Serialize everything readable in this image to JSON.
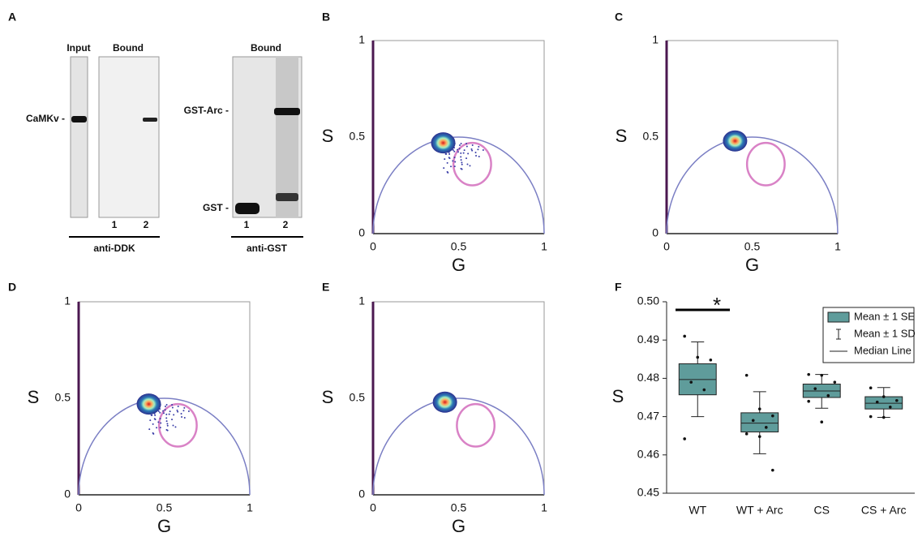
{
  "blot": {
    "label": "A",
    "left": {
      "header_input": "Input",
      "header_bound": "Bound",
      "band_label": "CaMKv -",
      "lanes": [
        "1",
        "2"
      ],
      "antibody": "anti-DDK"
    },
    "right": {
      "header": "Bound",
      "band_labels": [
        "GST-Arc -",
        "GST -"
      ],
      "lanes": [
        "1",
        "2"
      ],
      "antibody": "anti-GST"
    }
  },
  "chart_data": [
    {
      "type": "scatter",
      "label": "B",
      "xlabel": "G",
      "ylabel": "S",
      "xlim": [
        0,
        1
      ],
      "ylim": [
        0,
        1
      ],
      "xticks": [
        0,
        0.5,
        1
      ],
      "yticks": [
        0,
        0.5,
        1
      ],
      "cluster": {
        "x": 0.41,
        "y": 0.47
      },
      "circle": {
        "x": 0.58,
        "y": 0.36,
        "r": 0.11
      }
    },
    {
      "type": "scatter",
      "label": "C",
      "xlabel": "G",
      "ylabel": "S",
      "xlim": [
        0,
        1
      ],
      "ylim": [
        0,
        1
      ],
      "xticks": [
        0,
        0.5,
        1
      ],
      "yticks": [
        0,
        0.5,
        1
      ],
      "cluster": {
        "x": 0.4,
        "y": 0.48
      },
      "circle": {
        "x": 0.58,
        "y": 0.36,
        "r": 0.11
      }
    },
    {
      "type": "scatter",
      "label": "D",
      "xlabel": "G",
      "ylabel": "S",
      "xlim": [
        0,
        1
      ],
      "ylim": [
        0,
        1
      ],
      "xticks": [
        0,
        0.5,
        1
      ],
      "yticks": [
        0,
        0.5,
        1
      ],
      "cluster": {
        "x": 0.41,
        "y": 0.47
      },
      "circle": {
        "x": 0.58,
        "y": 0.36,
        "r": 0.11
      }
    },
    {
      "type": "scatter",
      "label": "E",
      "xlabel": "G",
      "ylabel": "S",
      "xlim": [
        0,
        1
      ],
      "ylim": [
        0,
        1
      ],
      "xticks": [
        0,
        0.5,
        1
      ],
      "yticks": [
        0,
        0.5,
        1
      ],
      "cluster": {
        "x": 0.42,
        "y": 0.48
      },
      "circle": {
        "x": 0.6,
        "y": 0.36,
        "r": 0.11
      }
    },
    {
      "type": "box",
      "label": "F",
      "ylabel": "S",
      "color": "#5f9c9b",
      "categories": [
        "WT",
        "WT + Arc",
        "CS",
        "CS + Arc"
      ],
      "ylim": [
        0.45,
        0.5
      ],
      "yticks": [
        {
          "value": 0.45,
          "label": "0.45"
        },
        0.46,
        0.47,
        0.48,
        0.49,
        {
          "value": 0.5,
          "label": "0.50"
        }
      ],
      "se_low": [
        0.4757,
        0.466,
        0.475,
        0.472
      ],
      "se_high": [
        0.4838,
        0.471,
        0.4785,
        0.4752
      ],
      "sd_low": [
        0.47,
        0.4603,
        0.4722,
        0.4698
      ],
      "sd_high": [
        0.4895,
        0.4765,
        0.481,
        0.4776
      ],
      "median": [
        0.4797,
        0.4683,
        0.4767,
        0.4735
      ],
      "points": [
        [
          0.491,
          0.4855,
          0.4848,
          0.479,
          0.477,
          0.4642
        ],
        [
          0.4808,
          0.472,
          0.4702,
          0.469,
          0.4672,
          0.4655,
          0.4648,
          0.456
        ],
        [
          0.481,
          0.4808,
          0.479,
          0.4773,
          0.4755,
          0.474,
          0.4686
        ],
        [
          0.4775,
          0.4752,
          0.4742,
          0.4738,
          0.4725,
          0.47,
          0.4698
        ]
      ],
      "annotation": "*",
      "legend": [
        "Mean ± 1 SE",
        "Mean ± 1 SD",
        "Median Line"
      ]
    }
  ]
}
